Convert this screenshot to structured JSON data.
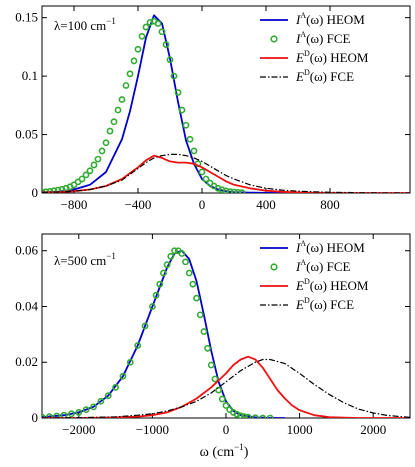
{
  "figure": {
    "xlabel": "ω (cm",
    "xlabel_sup": "−1",
    "xlabel_tail": ")"
  },
  "chart_data": [
    {
      "type": "line",
      "panel": "top",
      "annotation": {
        "prefix": "λ=100 cm",
        "sup": "−1"
      },
      "xlim": [
        -1000,
        1300
      ],
      "ylim": [
        0,
        0.16
      ],
      "xticks": [
        -800,
        -400,
        0,
        400,
        800
      ],
      "yticks": [
        0,
        0.05,
        0.1,
        0.15
      ],
      "ytick_labels": [
        "0",
        "0.05",
        "0.1",
        "0.15"
      ],
      "legend_position": "top-right",
      "series": [
        {
          "name": "I^A(ω) HEOM",
          "legend": {
            "base": "I",
            "sup": "A",
            "tail": "(ω) HEOM"
          },
          "style": "solid",
          "color": "#0000cc",
          "x": [
            -1000,
            -900,
            -800,
            -700,
            -600,
            -500,
            -450,
            -400,
            -350,
            -300,
            -250,
            -200,
            -150,
            -100,
            -50,
            0,
            50,
            100,
            150,
            200,
            300,
            400,
            500,
            600
          ],
          "y": [
            0.0005,
            0.001,
            0.003,
            0.007,
            0.018,
            0.046,
            0.07,
            0.1,
            0.133,
            0.152,
            0.145,
            0.115,
            0.078,
            0.045,
            0.025,
            0.012,
            0.006,
            0.003,
            0.0015,
            0.0008,
            0.0003,
            0.0001,
            0,
            0
          ]
        },
        {
          "name": "I^A(ω) FCE",
          "legend": {
            "base": "I",
            "sup": "A",
            "tail": "(ω) FCE"
          },
          "style": "circles",
          "color": "#33aa33",
          "x": [
            -1000,
            -975,
            -950,
            -925,
            -900,
            -875,
            -850,
            -825,
            -800,
            -775,
            -750,
            -725,
            -700,
            -675,
            -650,
            -625,
            -600,
            -575,
            -550,
            -525,
            -500,
            -475,
            -450,
            -425,
            -400,
            -375,
            -350,
            -325,
            -300,
            -275,
            -250,
            -225,
            -200,
            -175,
            -150,
            -125,
            -100,
            -75,
            -50,
            -25,
            0,
            25,
            50,
            75,
            100,
            125,
            150,
            175,
            200,
            225,
            250
          ],
          "y": [
            0.0007,
            0.001,
            0.0014,
            0.002,
            0.0025,
            0.0032,
            0.004,
            0.0053,
            0.007,
            0.0095,
            0.012,
            0.0155,
            0.019,
            0.024,
            0.029,
            0.036,
            0.043,
            0.053,
            0.061,
            0.071,
            0.08,
            0.092,
            0.102,
            0.113,
            0.123,
            0.134,
            0.142,
            0.146,
            0.147,
            0.145,
            0.138,
            0.127,
            0.114,
            0.1,
            0.086,
            0.071,
            0.058,
            0.046,
            0.036,
            0.025,
            0.018,
            0.012,
            0.0085,
            0.006,
            0.004,
            0.0028,
            0.0018,
            0.0012,
            0.0008,
            0.0005,
            0.0003
          ]
        },
        {
          "name": "E^D(ω) HEOM",
          "legend": {
            "base": "E",
            "sup": "D",
            "tail": "(ω) HEOM"
          },
          "style": "solid",
          "color": "#ee1111",
          "x": [
            -1000,
            -900,
            -800,
            -700,
            -600,
            -500,
            -450,
            -400,
            -350,
            -300,
            -250,
            -200,
            -150,
            -100,
            -50,
            0,
            50,
            100,
            150,
            200,
            300,
            400,
            500,
            600,
            700,
            800,
            900,
            1000,
            1100,
            1200,
            1300
          ],
          "y": [
            0.0005,
            0.0008,
            0.0015,
            0.003,
            0.006,
            0.012,
            0.017,
            0.022,
            0.028,
            0.032,
            0.03,
            0.027,
            0.026,
            0.026,
            0.025,
            0.022,
            0.018,
            0.014,
            0.01,
            0.007,
            0.004,
            0.002,
            0.001,
            0.0005,
            0.0002,
            0.0001,
            0,
            0,
            0,
            0,
            0
          ]
        },
        {
          "name": "E^D(ω) FCE",
          "legend": {
            "base": "E",
            "sup": "D",
            "tail": "(ω) FCE"
          },
          "style": "dashdot",
          "color": "#000000",
          "x": [
            -1000,
            -900,
            -800,
            -700,
            -600,
            -500,
            -450,
            -400,
            -350,
            -300,
            -250,
            -200,
            -150,
            -100,
            -50,
            0,
            50,
            100,
            150,
            200,
            300,
            400,
            500,
            600,
            700,
            800,
            900,
            1000,
            1100,
            1200,
            1300
          ],
          "y": [
            0.0005,
            0.0008,
            0.0015,
            0.003,
            0.006,
            0.011,
            0.016,
            0.021,
            0.026,
            0.03,
            0.032,
            0.033,
            0.033,
            0.032,
            0.03,
            0.027,
            0.023,
            0.019,
            0.015,
            0.012,
            0.007,
            0.004,
            0.0025,
            0.0015,
            0.001,
            0.0006,
            0.0004,
            0.0002,
            0.0001,
            0,
            0
          ]
        }
      ]
    },
    {
      "type": "line",
      "panel": "bottom",
      "annotation": {
        "prefix": "λ=500 cm",
        "sup": "−1"
      },
      "xlim": [
        -2500,
        2500
      ],
      "ylim": [
        0,
        0.066
      ],
      "xticks": [
        -2000,
        -1000,
        0,
        1000,
        2000
      ],
      "yticks": [
        0,
        0.02,
        0.04,
        0.06
      ],
      "ytick_labels": [
        "0",
        "0.02",
        "0.04",
        "0.06"
      ],
      "legend_position": "top-right",
      "series": [
        {
          "name": "I^A(ω) HEOM",
          "legend": {
            "base": "I",
            "sup": "A",
            "tail": "(ω) HEOM"
          },
          "style": "solid",
          "color": "#0000cc",
          "x": [
            -2500,
            -2200,
            -2000,
            -1800,
            -1600,
            -1400,
            -1200,
            -1000,
            -900,
            -800,
            -700,
            -600,
            -500,
            -400,
            -300,
            -200,
            -100,
            0,
            100,
            200,
            400,
            600,
            800
          ],
          "y": [
            0.0003,
            0.001,
            0.002,
            0.004,
            0.008,
            0.015,
            0.026,
            0.04,
            0.047,
            0.054,
            0.059,
            0.06,
            0.057,
            0.049,
            0.037,
            0.024,
            0.013,
            0.006,
            0.0025,
            0.001,
            0.0002,
            0,
            0
          ]
        },
        {
          "name": "I^A(ω) FCE",
          "legend": {
            "base": "I",
            "sup": "A",
            "tail": "(ω) FCE"
          },
          "style": "circles",
          "color": "#33aa33",
          "x": [
            -2500,
            -2400,
            -2300,
            -2200,
            -2100,
            -2000,
            -1900,
            -1800,
            -1700,
            -1600,
            -1500,
            -1400,
            -1300,
            -1200,
            -1100,
            -1000,
            -950,
            -900,
            -850,
            -800,
            -750,
            -700,
            -650,
            -600,
            -550,
            -500,
            -450,
            -400,
            -350,
            -300,
            -250,
            -200,
            -150,
            -100,
            -50,
            0,
            50,
            100,
            150,
            200,
            250,
            300,
            400,
            500,
            600
          ],
          "y": [
            0.0003,
            0.0005,
            0.0007,
            0.001,
            0.0015,
            0.002,
            0.003,
            0.004,
            0.006,
            0.008,
            0.011,
            0.015,
            0.02,
            0.026,
            0.033,
            0.04,
            0.044,
            0.048,
            0.052,
            0.055,
            0.058,
            0.06,
            0.06,
            0.059,
            0.056,
            0.052,
            0.048,
            0.043,
            0.037,
            0.031,
            0.025,
            0.019,
            0.014,
            0.01,
            0.0068,
            0.0045,
            0.003,
            0.002,
            0.0013,
            0.0008,
            0.0005,
            0.0003,
            0.0001,
            0,
            0
          ]
        },
        {
          "name": "E^D(ω) HEOM",
          "legend": {
            "base": "E",
            "sup": "D",
            "tail": "(ω) HEOM"
          },
          "style": "solid",
          "color": "#ee1111",
          "x": [
            -2500,
            -2000,
            -1500,
            -1200,
            -1000,
            -800,
            -600,
            -400,
            -200,
            0,
            100,
            200,
            300,
            400,
            500,
            600,
            700,
            800,
            900,
            1000,
            1200,
            1400,
            1600,
            1800,
            2000,
            2500
          ],
          "y": [
            0,
            0,
            0.0002,
            0.0005,
            0.001,
            0.002,
            0.004,
            0.007,
            0.011,
            0.016,
            0.019,
            0.021,
            0.022,
            0.021,
            0.018,
            0.014,
            0.01,
            0.007,
            0.0045,
            0.0028,
            0.001,
            0.0003,
            0.0001,
            0,
            0,
            0
          ]
        },
        {
          "name": "E^D(ω) FCE",
          "legend": {
            "base": "E",
            "sup": "D",
            "tail": "(ω) FCE"
          },
          "style": "dashdot",
          "color": "#000000",
          "x": [
            -2500,
            -2000,
            -1500,
            -1200,
            -1000,
            -800,
            -600,
            -400,
            -200,
            0,
            200,
            400,
            500,
            600,
            800,
            1000,
            1200,
            1400,
            1600,
            1800,
            2000,
            2200,
            2500
          ],
          "y": [
            0,
            0.0001,
            0.0004,
            0.001,
            0.0015,
            0.0025,
            0.004,
            0.006,
            0.009,
            0.013,
            0.017,
            0.02,
            0.021,
            0.021,
            0.0195,
            0.016,
            0.012,
            0.0085,
            0.0055,
            0.0032,
            0.0018,
            0.0009,
            0.0002
          ]
        }
      ]
    }
  ]
}
